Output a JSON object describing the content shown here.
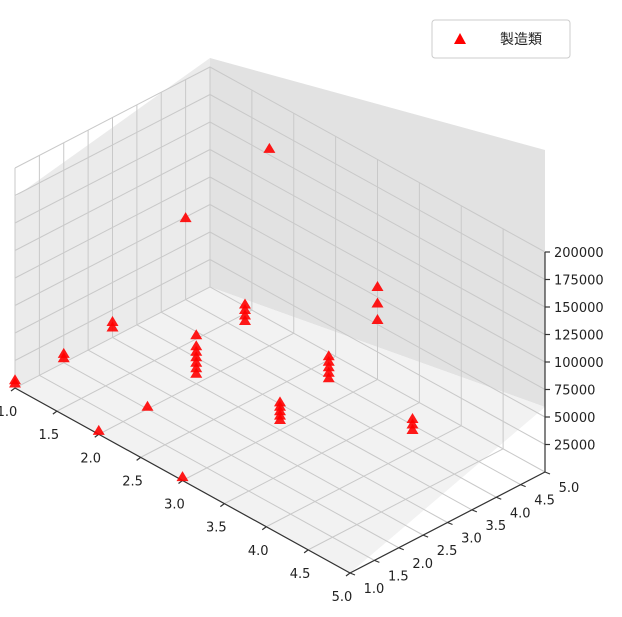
{
  "chart_data": {
    "type": "scatter",
    "projection": "3d",
    "marker": "triangle",
    "color": "#ff0000",
    "legend": {
      "entries": [
        "製造類"
      ],
      "position": "top-right"
    },
    "grid": true,
    "xlim": [
      1.0,
      5.0
    ],
    "ylim": [
      1.0,
      5.0
    ],
    "zlim": [
      0,
      200000
    ],
    "x_ticks": [
      "1.0",
      "1.5",
      "2.0",
      "2.5",
      "3.0",
      "3.5",
      "4.0",
      "4.5",
      "5.0"
    ],
    "y_ticks": [
      "1.0",
      "1.5",
      "2.0",
      "2.5",
      "3.0",
      "3.5",
      "4.0",
      "4.5",
      "5.0"
    ],
    "z_ticks": [
      "25000",
      "50000",
      "75000",
      "100000",
      "125000",
      "150000",
      "175000",
      "200000"
    ],
    "series": [
      {
        "name": "製造類",
        "points": [
          [
            1.0,
            1.0,
            5000
          ],
          [
            1.0,
            1.0,
            8000
          ],
          [
            1.0,
            2.0,
            5000
          ],
          [
            1.0,
            2.0,
            9000
          ],
          [
            1.0,
            3.0,
            10000
          ],
          [
            1.0,
            3.0,
            15000
          ],
          [
            1.0,
            4.5,
            75000
          ],
          [
            2.0,
            1.0,
            4000
          ],
          [
            2.0,
            2.0,
            3000
          ],
          [
            2.0,
            3.0,
            10000
          ],
          [
            2.0,
            3.0,
            15000
          ],
          [
            2.0,
            3.0,
            20000
          ],
          [
            2.0,
            3.0,
            25000
          ],
          [
            2.0,
            3.0,
            30000
          ],
          [
            2.0,
            3.0,
            35000
          ],
          [
            2.0,
            3.0,
            45000
          ],
          [
            2.0,
            4.0,
            35000
          ],
          [
            2.0,
            4.0,
            40000
          ],
          [
            2.0,
            4.0,
            45000
          ],
          [
            2.0,
            4.0,
            50000
          ],
          [
            2.0,
            4.5,
            180000
          ],
          [
            3.0,
            1.0,
            4000
          ],
          [
            3.0,
            3.0,
            10000
          ],
          [
            3.0,
            3.0,
            14000
          ],
          [
            3.0,
            3.0,
            18000
          ],
          [
            3.0,
            3.0,
            22000
          ],
          [
            3.0,
            3.0,
            26000
          ],
          [
            3.0,
            4.0,
            25000
          ],
          [
            3.0,
            4.0,
            30000
          ],
          [
            3.0,
            4.0,
            35000
          ],
          [
            3.0,
            4.0,
            40000
          ],
          [
            3.0,
            4.0,
            45000
          ],
          [
            3.0,
            5.0,
            55000
          ],
          [
            3.0,
            5.0,
            70000
          ],
          [
            3.0,
            5.0,
            85000
          ],
          [
            4.0,
            4.0,
            20000
          ],
          [
            4.0,
            4.0,
            25000
          ],
          [
            4.0,
            4.0,
            30000
          ]
        ]
      }
    ]
  }
}
